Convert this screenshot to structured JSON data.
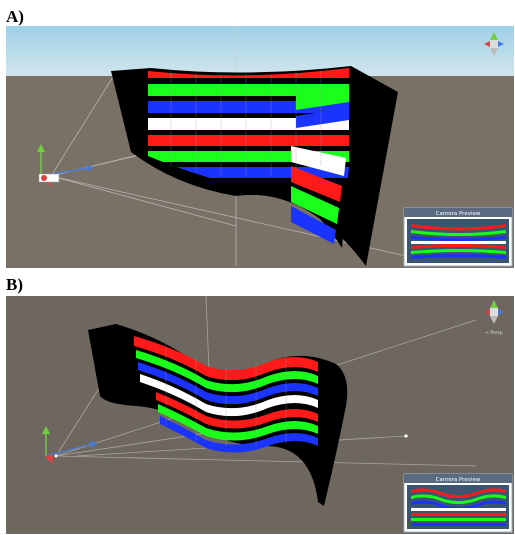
{
  "panels": [
    {
      "label": "A)",
      "preview": {
        "title": "Camera Preview"
      },
      "gizmo": {
        "label": ""
      }
    },
    {
      "label": "B)",
      "preview": {
        "title": "Camera Preview"
      },
      "gizmo": {
        "label": "< Persp"
      }
    }
  ],
  "stripe_colors": [
    "#ff1a1a",
    "#1aff1a",
    "#1a33ff",
    "#ffffff",
    "#000000",
    "#ff1a1a",
    "#1aff1a",
    "#1a33ff"
  ],
  "colors": {
    "sky_top": "#9ed0e6",
    "sky_bottom": "#d7e8ee",
    "ground": "#7a7166",
    "ground_b": "#6b645c",
    "screen_back": "#000000",
    "preview_border": "#9ab0c8",
    "gizmo_x": "#e04040",
    "gizmo_y": "#70d040",
    "gizmo_z": "#4a7ad8"
  },
  "icons": [
    "camera-icon",
    "scene-gizmo-icon",
    "light-icon"
  ]
}
